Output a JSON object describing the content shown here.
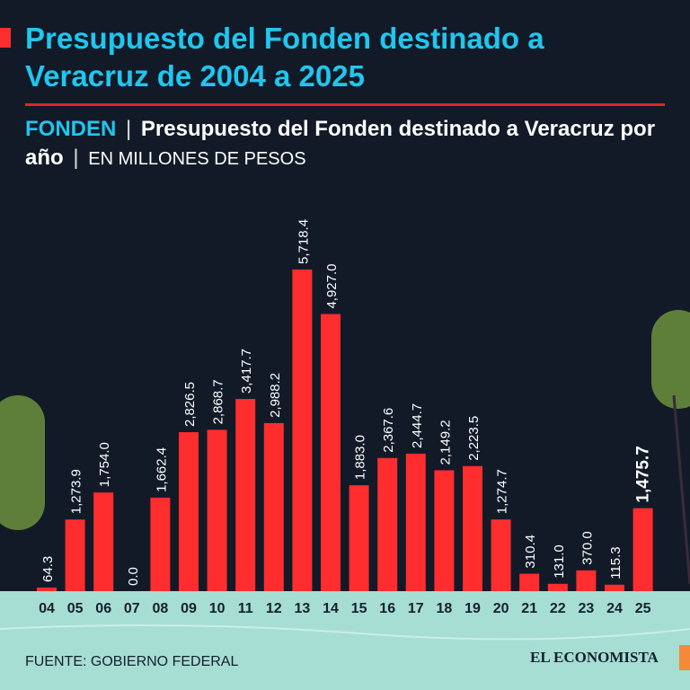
{
  "header": {
    "title": "Presupuesto del Fonden destinado a Veracruz de 2004 a 2025",
    "subtitle_brand": "FONDEN",
    "subtitle_separator": "|",
    "subtitle_main": "Presupuesto del Fonden destinado a Veracruz por año",
    "subtitle_unit": "EN MILLONES DE PESOS"
  },
  "footer": {
    "source": "FUENTE: GOBIERNO FEDERAL",
    "logo": "EL ECONOMISTA"
  },
  "colors": {
    "bar": "#ff2d2d",
    "title": "#20c6ee",
    "background": "#121a28",
    "water": "#a6ded4"
  },
  "chart_data": {
    "type": "bar",
    "title": "Presupuesto del Fonden destinado a Veracruz por año",
    "xlabel": "",
    "ylabel": "Millones de pesos",
    "categories": [
      "04",
      "05",
      "06",
      "07",
      "08",
      "09",
      "10",
      "11",
      "12",
      "13",
      "14",
      "15",
      "16",
      "17",
      "18",
      "19",
      "20",
      "21",
      "22",
      "23",
      "24",
      "25"
    ],
    "values": [
      64.3,
      1273.9,
      1754.0,
      0.0,
      1662.4,
      2826.5,
      2868.7,
      3417.7,
      2988.2,
      5718.4,
      4927.0,
      1883.0,
      2367.6,
      2444.7,
      2149.2,
      2223.5,
      1274.7,
      310.4,
      131.0,
      370.0,
      115.3,
      1475.7
    ],
    "labels": [
      "64.3",
      "1,273.9",
      "1,754.0",
      "0.0",
      "1,662.4",
      "2,826.5",
      "2,868.7",
      "3,417.7",
      "2,988.2",
      "5,718.4",
      "4,927.0",
      "1,883.0",
      "2,367.6",
      "2,444.7",
      "2,149.2",
      "2,223.5",
      "1,274.7",
      "310.4",
      "131.0",
      "370.0",
      "115.3",
      "1,475.7"
    ],
    "highlight_index": 21,
    "ylim": [
      0,
      5718.4
    ],
    "grid": false
  }
}
